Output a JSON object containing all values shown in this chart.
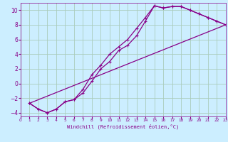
{
  "xlabel": "Windchill (Refroidissement éolien,°C)",
  "bg_color": "#cceeff",
  "grid_color": "#aaccbb",
  "line_color": "#880088",
  "xlim": [
    0,
    23
  ],
  "ylim": [
    -4.5,
    11.0
  ],
  "xticks": [
    0,
    1,
    2,
    3,
    4,
    5,
    6,
    7,
    8,
    9,
    10,
    11,
    12,
    13,
    14,
    15,
    16,
    17,
    18,
    19,
    20,
    21,
    22,
    23
  ],
  "yticks": [
    -4,
    -2,
    0,
    2,
    4,
    6,
    8,
    10
  ],
  "line1_x": [
    1,
    2,
    3,
    4,
    5,
    6,
    7,
    8,
    9,
    10,
    11,
    12,
    13,
    14,
    15,
    16,
    17,
    18,
    19,
    20,
    21,
    22,
    23
  ],
  "line1_y": [
    -2.7,
    -3.5,
    -4.0,
    -3.5,
    -2.5,
    -2.2,
    -1.3,
    0.3,
    2.0,
    3.0,
    4.5,
    5.2,
    6.5,
    8.5,
    10.6,
    10.3,
    10.5,
    10.5,
    10.0,
    9.5,
    9.0,
    8.5,
    8.0
  ],
  "line2_x": [
    1,
    2,
    3,
    4,
    5,
    6,
    7,
    8,
    9,
    10,
    11,
    12,
    13,
    14,
    15,
    16,
    17,
    18,
    19,
    20,
    21,
    22,
    23
  ],
  "line2_y": [
    -2.7,
    -3.5,
    -4.0,
    -3.5,
    -2.5,
    -2.2,
    -0.8,
    1.2,
    2.5,
    4.0,
    5.0,
    6.0,
    7.5,
    9.0,
    10.6,
    10.3,
    10.5,
    10.5,
    10.0,
    9.5,
    9.0,
    8.5,
    8.0
  ],
  "line3_x": [
    1,
    23
  ],
  "line3_y": [
    -2.7,
    8.0
  ]
}
